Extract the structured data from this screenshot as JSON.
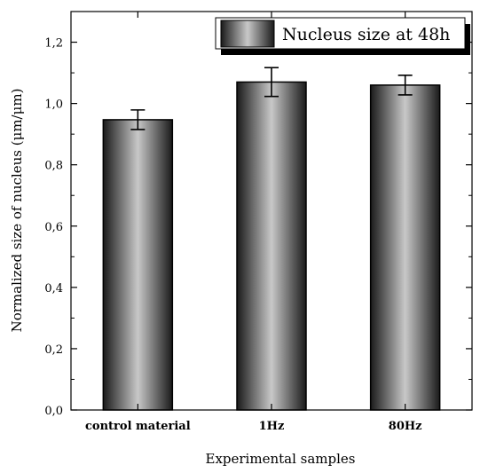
{
  "chart_data": {
    "type": "bar",
    "categories": [
      "control material",
      "1Hz",
      "80Hz"
    ],
    "series": [
      {
        "name": "Nucleus size at 48h",
        "values": [
          0.947,
          1.07,
          1.06
        ],
        "errors": [
          0.032,
          0.047,
          0.032
        ]
      }
    ],
    "ylim": [
      0,
      1.3
    ],
    "yticks": [
      0.0,
      0.2,
      0.4,
      0.6,
      0.8,
      1.0,
      1.2
    ],
    "ytick_labels": [
      "0,0",
      "0,2",
      "0,4",
      "0,6",
      "0,8",
      "1,0",
      "1,2"
    ],
    "xlabel": "Experimental samples",
    "ylabel": "Normalized size of nucleus (μm/μm)",
    "legend_position": "top-right",
    "grid": false,
    "bar_style": "gray cylindrical gradient with black outline",
    "colors": {
      "bar_dark": "#1a1a1a",
      "bar_light": "#c8c8c8",
      "axis": "#000000"
    }
  }
}
